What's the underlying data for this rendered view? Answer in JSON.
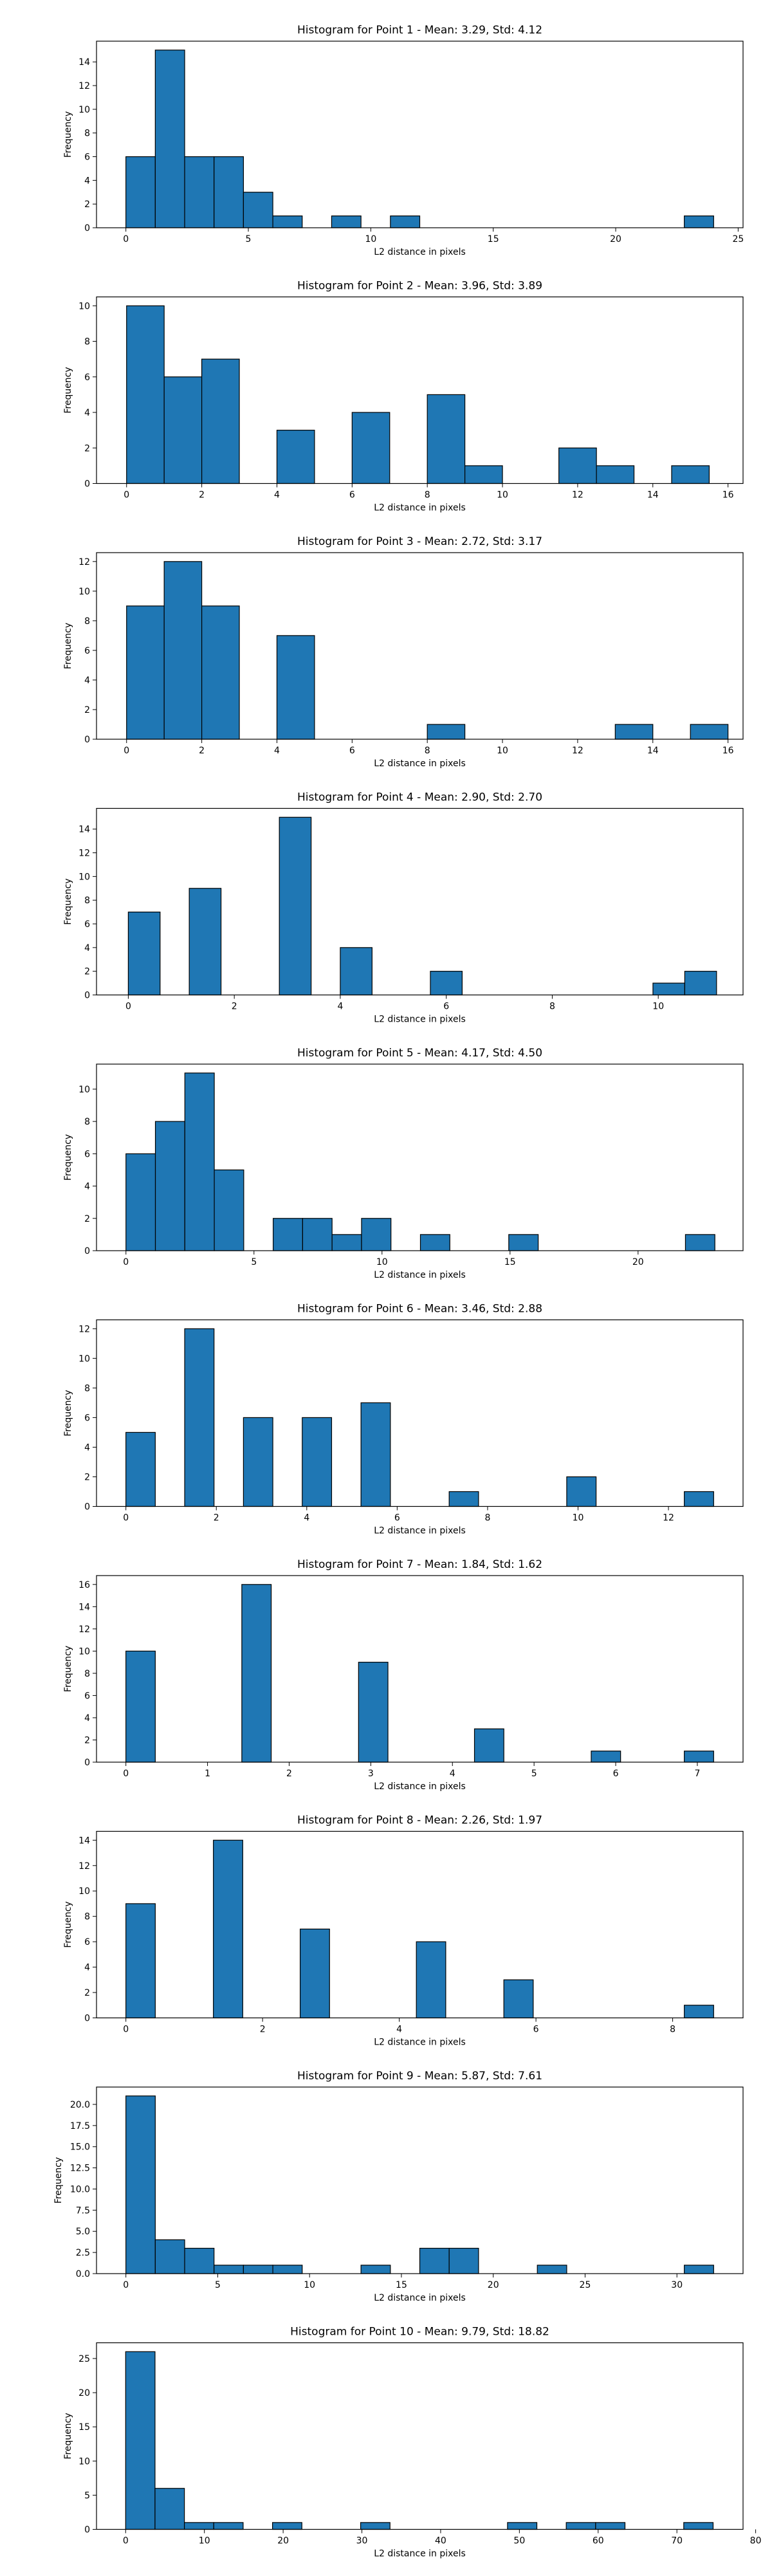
{
  "figure": {
    "bar_color": "#1f77b4",
    "edge_color": "#000000",
    "axis_color": "#000000"
  },
  "chart_data": [
    {
      "type": "bar",
      "title": "Histogram for Point 1 - Mean: 3.29, Std: 4.12",
      "xlabel": "L2 distance in pixels",
      "ylabel": "Frequency",
      "xlim": [
        -1.2,
        25.2
      ],
      "ylim": [
        0,
        15.75
      ],
      "xticks": [
        0,
        5,
        10,
        15,
        20,
        25
      ],
      "yticks": [
        0,
        2,
        4,
        6,
        8,
        10,
        12,
        14
      ],
      "grid": false,
      "bins": [
        {
          "x0": 0.0,
          "x1": 1.2,
          "count": 6
        },
        {
          "x0": 1.2,
          "x1": 2.4,
          "count": 15
        },
        {
          "x0": 2.4,
          "x1": 3.6,
          "count": 6
        },
        {
          "x0": 3.6,
          "x1": 4.8,
          "count": 6
        },
        {
          "x0": 4.8,
          "x1": 6.0,
          "count": 3
        },
        {
          "x0": 6.0,
          "x1": 7.2,
          "count": 1
        },
        {
          "x0": 8.4,
          "x1": 9.6,
          "count": 1
        },
        {
          "x0": 10.8,
          "x1": 12.0,
          "count": 1
        },
        {
          "x0": 22.8,
          "x1": 24.0,
          "count": 1
        }
      ]
    },
    {
      "type": "bar",
      "title": "Histogram for Point 2 - Mean: 3.96, Std: 3.89",
      "xlabel": "L2 distance in pixels",
      "ylabel": "Frequency",
      "xlim": [
        -0.8,
        16.4
      ],
      "ylim": [
        0,
        10.5
      ],
      "xticks": [
        0,
        2,
        4,
        6,
        8,
        10,
        12,
        14,
        16
      ],
      "yticks": [
        0,
        2,
        4,
        6,
        8,
        10
      ],
      "grid": false,
      "bins": [
        {
          "x0": 0.0,
          "x1": 1.0,
          "count": 10
        },
        {
          "x0": 1.0,
          "x1": 2.0,
          "count": 6
        },
        {
          "x0": 2.0,
          "x1": 3.0,
          "count": 7
        },
        {
          "x0": 4.0,
          "x1": 5.0,
          "count": 3
        },
        {
          "x0": 6.0,
          "x1": 7.0,
          "count": 4
        },
        {
          "x0": 8.0,
          "x1": 9.0,
          "count": 5
        },
        {
          "x0": 9.0,
          "x1": 10.0,
          "count": 1
        },
        {
          "x0": 11.5,
          "x1": 12.5,
          "count": 2
        },
        {
          "x0": 12.5,
          "x1": 13.5,
          "count": 1
        },
        {
          "x0": 14.5,
          "x1": 15.5,
          "count": 1
        }
      ]
    },
    {
      "type": "bar",
      "title": "Histogram for Point 3 - Mean: 2.72, Std: 3.17",
      "xlabel": "L2 distance in pixels",
      "ylabel": "Frequency",
      "xlim": [
        -0.8,
        16.4
      ],
      "ylim": [
        0,
        12.6
      ],
      "xticks": [
        0,
        2,
        4,
        6,
        8,
        10,
        12,
        14,
        16
      ],
      "yticks": [
        0,
        2,
        4,
        6,
        8,
        10,
        12
      ],
      "grid": false,
      "bins": [
        {
          "x0": 0.0,
          "x1": 1.0,
          "count": 9
        },
        {
          "x0": 1.0,
          "x1": 2.0,
          "count": 12
        },
        {
          "x0": 2.0,
          "x1": 3.0,
          "count": 9
        },
        {
          "x0": 4.0,
          "x1": 5.0,
          "count": 7
        },
        {
          "x0": 8.0,
          "x1": 9.0,
          "count": 1
        },
        {
          "x0": 13.0,
          "x1": 14.0,
          "count": 1
        },
        {
          "x0": 15.0,
          "x1": 16.0,
          "count": 1
        }
      ]
    },
    {
      "type": "bar",
      "title": "Histogram for Point 4 - Mean: 2.90, Std: 2.70",
      "xlabel": "L2 distance in pixels",
      "ylabel": "Frequency",
      "xlim": [
        -0.6,
        11.6
      ],
      "ylim": [
        0,
        15.75
      ],
      "xticks": [
        0,
        2,
        4,
        6,
        8,
        10
      ],
      "yticks": [
        0,
        2,
        4,
        6,
        8,
        10,
        12,
        14
      ],
      "grid": false,
      "bins": [
        {
          "x0": 0.0,
          "x1": 0.6,
          "count": 7
        },
        {
          "x0": 1.15,
          "x1": 1.75,
          "count": 9
        },
        {
          "x0": 2.85,
          "x1": 3.45,
          "count": 15
        },
        {
          "x0": 4.0,
          "x1": 4.6,
          "count": 4
        },
        {
          "x0": 5.7,
          "x1": 6.3,
          "count": 2
        },
        {
          "x0": 9.9,
          "x1": 10.5,
          "count": 1
        },
        {
          "x0": 10.5,
          "x1": 11.1,
          "count": 2
        }
      ]
    },
    {
      "type": "bar",
      "title": "Histogram for Point 5 - Mean: 4.17, Std: 4.50",
      "xlabel": "L2 distance in pixels",
      "ylabel": "Frequency",
      "xlim": [
        -1.15,
        24.1
      ],
      "ylim": [
        0,
        11.55
      ],
      "xticks": [
        0,
        5,
        10,
        15,
        20
      ],
      "yticks": [
        0,
        2,
        4,
        6,
        8,
        10
      ],
      "grid": false,
      "bins": [
        {
          "x0": 0.0,
          "x1": 1.15,
          "count": 6
        },
        {
          "x0": 1.15,
          "x1": 2.3,
          "count": 8
        },
        {
          "x0": 2.3,
          "x1": 3.45,
          "count": 11
        },
        {
          "x0": 3.45,
          "x1": 4.6,
          "count": 5
        },
        {
          "x0": 5.75,
          "x1": 6.9,
          "count": 2
        },
        {
          "x0": 6.9,
          "x1": 8.05,
          "count": 2
        },
        {
          "x0": 8.05,
          "x1": 9.2,
          "count": 1
        },
        {
          "x0": 9.2,
          "x1": 10.35,
          "count": 2
        },
        {
          "x0": 11.5,
          "x1": 12.65,
          "count": 1
        },
        {
          "x0": 14.95,
          "x1": 16.1,
          "count": 1
        },
        {
          "x0": 21.85,
          "x1": 23.0,
          "count": 1
        }
      ]
    },
    {
      "type": "bar",
      "title": "Histogram for Point 6 - Mean: 3.46, Std: 2.88",
      "xlabel": "L2 distance in pixels",
      "ylabel": "Frequency",
      "xlim": [
        -0.65,
        13.65
      ],
      "ylim": [
        0,
        12.6
      ],
      "xticks": [
        0,
        2,
        4,
        6,
        8,
        10,
        12
      ],
      "yticks": [
        0,
        2,
        4,
        6,
        8,
        10,
        12
      ],
      "grid": false,
      "bins": [
        {
          "x0": 0.0,
          "x1": 0.65,
          "count": 5
        },
        {
          "x0": 1.3,
          "x1": 1.95,
          "count": 12
        },
        {
          "x0": 2.6,
          "x1": 3.25,
          "count": 6
        },
        {
          "x0": 3.9,
          "x1": 4.55,
          "count": 6
        },
        {
          "x0": 5.2,
          "x1": 5.85,
          "count": 7
        },
        {
          "x0": 7.15,
          "x1": 7.8,
          "count": 1
        },
        {
          "x0": 9.75,
          "x1": 10.4,
          "count": 2
        },
        {
          "x0": 12.35,
          "x1": 13.0,
          "count": 1
        }
      ]
    },
    {
      "type": "bar",
      "title": "Histogram for Point 7 - Mean: 1.84, Std: 1.62",
      "xlabel": "L2 distance in pixels",
      "ylabel": "Frequency",
      "xlim": [
        -0.36,
        7.56
      ],
      "ylim": [
        0,
        16.8
      ],
      "xticks": [
        0,
        1,
        2,
        3,
        4,
        5,
        6,
        7
      ],
      "yticks": [
        0,
        2,
        4,
        6,
        8,
        10,
        12,
        14,
        16
      ],
      "grid": false,
      "bins": [
        {
          "x0": 0.0,
          "x1": 0.36,
          "count": 10
        },
        {
          "x0": 1.42,
          "x1": 1.78,
          "count": 16
        },
        {
          "x0": 2.85,
          "x1": 3.21,
          "count": 9
        },
        {
          "x0": 4.27,
          "x1": 4.63,
          "count": 3
        },
        {
          "x0": 5.7,
          "x1": 6.06,
          "count": 1
        },
        {
          "x0": 6.84,
          "x1": 7.2,
          "count": 1
        }
      ]
    },
    {
      "type": "bar",
      "title": "Histogram for Point 8 - Mean: 2.26, Std: 1.97",
      "xlabel": "L2 distance in pixels",
      "ylabel": "Frequency",
      "xlim": [
        -0.43,
        9.03
      ],
      "ylim": [
        0,
        14.7
      ],
      "xticks": [
        0,
        2,
        4,
        6,
        8
      ],
      "yticks": [
        0,
        2,
        4,
        6,
        8,
        10,
        12,
        14
      ],
      "grid": false,
      "bins": [
        {
          "x0": 0.0,
          "x1": 0.43,
          "count": 9
        },
        {
          "x0": 1.28,
          "x1": 1.71,
          "count": 14
        },
        {
          "x0": 2.55,
          "x1": 2.98,
          "count": 7
        },
        {
          "x0": 4.25,
          "x1": 4.68,
          "count": 6
        },
        {
          "x0": 5.53,
          "x1": 5.96,
          "count": 3
        },
        {
          "x0": 8.17,
          "x1": 8.6,
          "count": 1
        }
      ]
    },
    {
      "type": "bar",
      "title": "Histogram for Point 9 - Mean: 5.87, Std: 7.61",
      "xlabel": "L2 distance in pixels",
      "ylabel": "Frequency",
      "xlim": [
        -1.6,
        33.6
      ],
      "ylim": [
        0,
        22.05
      ],
      "xticks": [
        0,
        5,
        10,
        15,
        20,
        25,
        30
      ],
      "yticks": [
        0.0,
        2.5,
        5.0,
        7.5,
        10.0,
        12.5,
        15.0,
        17.5,
        20.0
      ],
      "ytick_labels": [
        "0.0",
        "2.5",
        "5.0",
        "7.5",
        "10.0",
        "12.5",
        "15.0",
        "17.5",
        "20.0"
      ],
      "grid": false,
      "bins": [
        {
          "x0": 0.0,
          "x1": 1.6,
          "count": 21
        },
        {
          "x0": 1.6,
          "x1": 3.2,
          "count": 4
        },
        {
          "x0": 3.2,
          "x1": 4.8,
          "count": 3
        },
        {
          "x0": 4.8,
          "x1": 6.4,
          "count": 1
        },
        {
          "x0": 6.4,
          "x1": 8.0,
          "count": 1
        },
        {
          "x0": 8.0,
          "x1": 9.6,
          "count": 1
        },
        {
          "x0": 12.8,
          "x1": 14.4,
          "count": 1
        },
        {
          "x0": 16.0,
          "x1": 17.6,
          "count": 3
        },
        {
          "x0": 17.6,
          "x1": 19.2,
          "count": 3
        },
        {
          "x0": 22.4,
          "x1": 24.0,
          "count": 1
        },
        {
          "x0": 30.4,
          "x1": 32.0,
          "count": 1
        }
      ]
    },
    {
      "type": "bar",
      "title": "Histogram for Point 10 - Mean: 9.79, Std: 18.82",
      "xlabel": "L2 distance in pixels",
      "ylabel": "Frequency",
      "xlim": [
        -3.7,
        78.4
      ],
      "ylim": [
        0,
        27.3
      ],
      "xticks": [
        0,
        10,
        20,
        30,
        40,
        50,
        60,
        70,
        80
      ],
      "yticks": [
        0,
        5,
        10,
        15,
        20,
        25
      ],
      "grid": false,
      "bins": [
        {
          "x0": 0.0,
          "x1": 3.73,
          "count": 26
        },
        {
          "x0": 3.73,
          "x1": 7.46,
          "count": 6
        },
        {
          "x0": 7.46,
          "x1": 11.19,
          "count": 1
        },
        {
          "x0": 11.19,
          "x1": 14.92,
          "count": 1
        },
        {
          "x0": 18.65,
          "x1": 22.38,
          "count": 1
        },
        {
          "x0": 29.84,
          "x1": 33.57,
          "count": 1
        },
        {
          "x0": 48.49,
          "x1": 52.22,
          "count": 1
        },
        {
          "x0": 55.95,
          "x1": 59.68,
          "count": 1
        },
        {
          "x0": 59.68,
          "x1": 63.41,
          "count": 1
        },
        {
          "x0": 70.87,
          "x1": 74.6,
          "count": 1
        }
      ]
    }
  ]
}
